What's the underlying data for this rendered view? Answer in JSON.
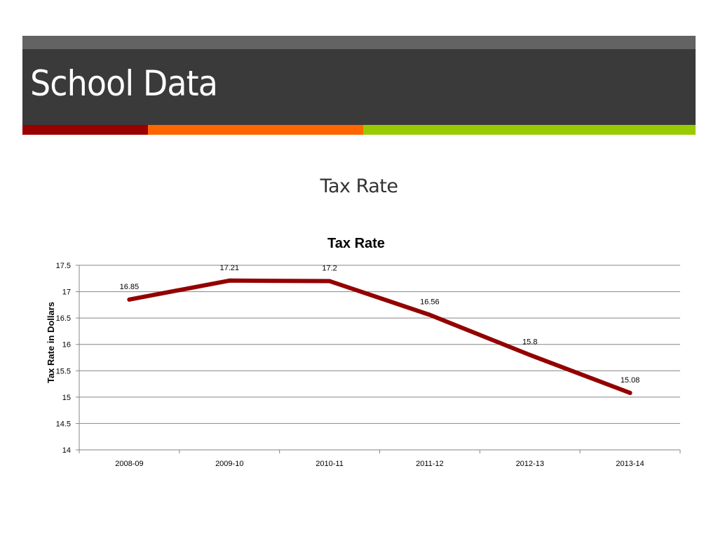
{
  "slide": {
    "title": "School Data",
    "subtitle": "Tax Rate"
  },
  "colors": {
    "header_bg": "#3a3a3a",
    "header_band": "#636363",
    "accent_red": "#9b0000",
    "accent_orange": "#ff6600",
    "accent_green": "#99cc00",
    "series_line": "#930000",
    "gridline": "#868686"
  },
  "chart_data": {
    "type": "line",
    "title": "Tax Rate",
    "xlabel": "",
    "ylabel": "Tax Rate in Dollars",
    "categories": [
      "2008-09",
      "2009-10",
      "2010-11",
      "2011-12",
      "2012-13",
      "2013-14"
    ],
    "series": [
      {
        "values": [
          16.85,
          17.21,
          17.2,
          16.56,
          15.8,
          15.08
        ]
      }
    ],
    "data_labels": [
      "16.85",
      "17.21",
      "17.2",
      "16.56",
      "15.8",
      "15.08"
    ],
    "ylim": [
      14,
      17.5
    ],
    "yticks": [
      14,
      14.5,
      15,
      15.5,
      16,
      16.5,
      17,
      17.5
    ],
    "ytick_labels": [
      "14",
      "14.5",
      "15",
      "15.5",
      "16",
      "16.5",
      "17",
      "17.5"
    ],
    "grid": true,
    "legend": "none"
  }
}
